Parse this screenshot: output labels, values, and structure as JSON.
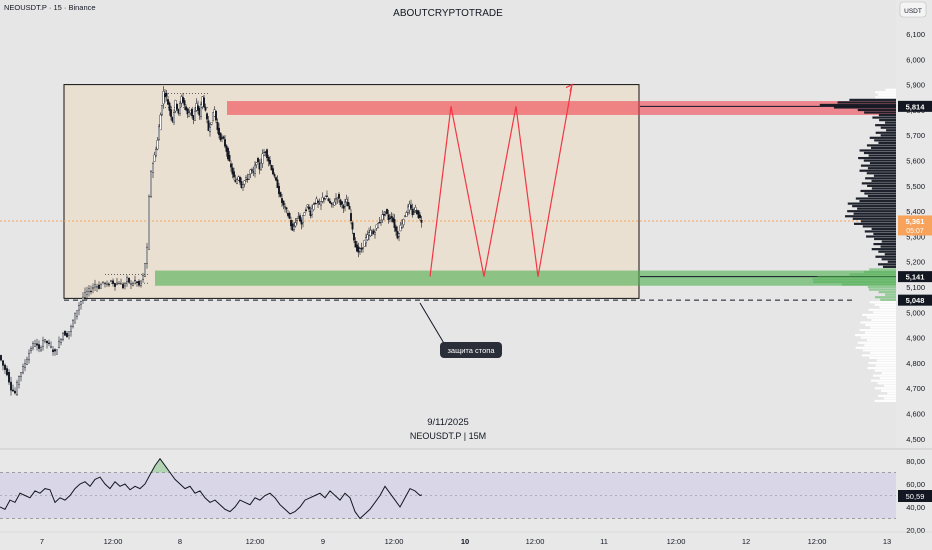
{
  "header": {
    "symbol_info": "NEOUSDT.P · 15 · Binance",
    "watermark": "ABOUTCRYPTOTRADE",
    "currency_button": "USDT"
  },
  "center_label": {
    "date": "9/11/2025",
    "symbol": "NEOUSDT.P  |  15M"
  },
  "annotation": {
    "text": "защита стопа"
  },
  "price_axis": {
    "ticks": [
      "6,100",
      "6,000",
      "5,900",
      "5,800",
      "5,700",
      "5,600",
      "5,500",
      "5,400",
      "5,300",
      "5,200",
      "5,100",
      "5,000",
      "4,900",
      "4,800",
      "4,700",
      "4,600",
      "4,500"
    ],
    "tick_values": [
      6100,
      6000,
      5900,
      5800,
      5700,
      5600,
      5500,
      5400,
      5300,
      5200,
      5100,
      5000,
      4900,
      4800,
      4700,
      4600,
      4500
    ],
    "badges": [
      {
        "id": "resistance",
        "label": "5,814",
        "value": 5814,
        "color": "#131722",
        "text_color": "#ffffff"
      },
      {
        "id": "current",
        "label": "5,361",
        "sub": "05:07",
        "value": 5361,
        "color": "#f7a35c",
        "text_color": "#ffffff"
      },
      {
        "id": "support",
        "label": "5,141",
        "value": 5141,
        "color": "#131722",
        "text_color": "#ffffff"
      },
      {
        "id": "stop",
        "label": "5,048",
        "value": 5048,
        "color": "#131722",
        "text_color": "#ffffff"
      }
    ]
  },
  "rsi_axis": {
    "ticks": [
      "80,00",
      "60,00",
      "40,00",
      "20,00"
    ],
    "tick_values": [
      80,
      60,
      40,
      20
    ],
    "badge": {
      "label": "50,59",
      "value": 50.59
    }
  },
  "time_axis": {
    "labels": [
      "7",
      "12:00",
      "8",
      "12:00",
      "9",
      "12:00",
      "10",
      "12:00",
      "11",
      "12:00",
      "12",
      "12:00",
      "13"
    ],
    "bold": [
      false,
      false,
      false,
      false,
      false,
      false,
      true,
      false,
      false,
      false,
      false,
      false,
      false
    ]
  },
  "zones": {
    "resistance": {
      "top": 5835,
      "bottom": 5780,
      "color": "#f23645"
    },
    "support": {
      "top": 5165,
      "bottom": 5105,
      "color": "#4caf50"
    },
    "range_box": {
      "top": 5900,
      "bottom": 5055,
      "color": "#f7d7b0"
    },
    "stop_line": 5048,
    "current_line": 5361
  },
  "forecast": {
    "color": "#f23645",
    "points": [
      [
        5141,
        0
      ],
      [
        5814,
        1
      ],
      [
        5141,
        2
      ],
      [
        5814,
        3
      ],
      [
        5141,
        4
      ],
      [
        5900,
        5
      ]
    ]
  },
  "chart_data": {
    "type": "candlestick",
    "title": "NEOUSDT.P · 15 · Binance",
    "ylim": [
      4500,
      6150
    ],
    "price_path": [
      [
        0,
        4830
      ],
      [
        4,
        4790
      ],
      [
        8,
        4760
      ],
      [
        12,
        4700
      ],
      [
        16,
        4680
      ],
      [
        20,
        4750
      ],
      [
        24,
        4780
      ],
      [
        28,
        4820
      ],
      [
        32,
        4860
      ],
      [
        36,
        4880
      ],
      [
        40,
        4850
      ],
      [
        44,
        4890
      ],
      [
        48,
        4880
      ],
      [
        52,
        4860
      ],
      [
        56,
        4840
      ],
      [
        60,
        4880
      ],
      [
        64,
        4920
      ],
      [
        68,
        4910
      ],
      [
        72,
        4940
      ],
      [
        76,
        4990
      ],
      [
        80,
        5030
      ],
      [
        84,
        5060
      ],
      [
        88,
        5080
      ],
      [
        92,
        5090
      ],
      [
        96,
        5110
      ],
      [
        100,
        5100
      ],
      [
        104,
        5120
      ],
      [
        108,
        5105
      ],
      [
        112,
        5125
      ],
      [
        116,
        5110
      ],
      [
        120,
        5120
      ],
      [
        124,
        5100
      ],
      [
        128,
        5130
      ],
      [
        132,
        5110
      ],
      [
        136,
        5125
      ],
      [
        140,
        5105
      ],
      [
        144,
        5140
      ],
      [
        148,
        5250
      ],
      [
        150,
        5450
      ],
      [
        152,
        5560
      ],
      [
        155,
        5620
      ],
      [
        158,
        5680
      ],
      [
        161,
        5780
      ],
      [
        164,
        5870
      ],
      [
        167,
        5850
      ],
      [
        170,
        5800
      ],
      [
        173,
        5760
      ],
      [
        176,
        5830
      ],
      [
        179,
        5790
      ],
      [
        182,
        5850
      ],
      [
        185,
        5820
      ],
      [
        188,
        5780
      ],
      [
        191,
        5800
      ],
      [
        194,
        5760
      ],
      [
        197,
        5820
      ],
      [
        200,
        5780
      ],
      [
        203,
        5850
      ],
      [
        206,
        5790
      ],
      [
        209,
        5720
      ],
      [
        212,
        5760
      ],
      [
        215,
        5800
      ],
      [
        218,
        5720
      ],
      [
        221,
        5690
      ],
      [
        224,
        5680
      ],
      [
        227,
        5640
      ],
      [
        230,
        5590
      ],
      [
        233,
        5550
      ],
      [
        236,
        5510
      ],
      [
        239,
        5540
      ],
      [
        242,
        5500
      ],
      [
        245,
        5520
      ],
      [
        248,
        5530
      ],
      [
        251,
        5560
      ],
      [
        254,
        5550
      ],
      [
        257,
        5600
      ],
      [
        260,
        5570
      ],
      [
        263,
        5620
      ],
      [
        266,
        5640
      ],
      [
        269,
        5600
      ],
      [
        272,
        5570
      ],
      [
        275,
        5530
      ],
      [
        278,
        5500
      ],
      [
        281,
        5450
      ],
      [
        284,
        5420
      ],
      [
        287,
        5400
      ],
      [
        290,
        5370
      ],
      [
        293,
        5320
      ],
      [
        296,
        5360
      ],
      [
        299,
        5380
      ],
      [
        302,
        5350
      ],
      [
        305,
        5400
      ],
      [
        308,
        5420
      ],
      [
        311,
        5390
      ],
      [
        314,
        5430
      ],
      [
        317,
        5440
      ],
      [
        320,
        5420
      ],
      [
        323,
        5450
      ],
      [
        326,
        5460
      ],
      [
        329,
        5440
      ],
      [
        332,
        5420
      ],
      [
        335,
        5440
      ],
      [
        338,
        5460
      ],
      [
        341,
        5430
      ],
      [
        344,
        5420
      ],
      [
        347,
        5440
      ],
      [
        350,
        5400
      ],
      [
        353,
        5320
      ],
      [
        356,
        5260
      ],
      [
        359,
        5240
      ],
      [
        362,
        5250
      ],
      [
        365,
        5280
      ],
      [
        368,
        5300
      ],
      [
        371,
        5320
      ],
      [
        374,
        5310
      ],
      [
        377,
        5340
      ],
      [
        380,
        5360
      ],
      [
        383,
        5380
      ],
      [
        386,
        5400
      ],
      [
        389,
        5370
      ],
      [
        392,
        5380
      ],
      [
        395,
        5340
      ],
      [
        398,
        5300
      ],
      [
        401,
        5340
      ],
      [
        404,
        5370
      ],
      [
        407,
        5400
      ],
      [
        410,
        5420
      ],
      [
        413,
        5390
      ],
      [
        416,
        5410
      ],
      [
        419,
        5380
      ],
      [
        422,
        5361
      ]
    ],
    "rsi_path": [
      [
        0,
        40
      ],
      [
        5,
        38
      ],
      [
        10,
        46
      ],
      [
        15,
        44
      ],
      [
        20,
        52
      ],
      [
        25,
        50
      ],
      [
        30,
        48
      ],
      [
        35,
        54
      ],
      [
        40,
        52
      ],
      [
        45,
        56
      ],
      [
        50,
        55
      ],
      [
        55,
        44
      ],
      [
        60,
        48
      ],
      [
        65,
        46
      ],
      [
        70,
        50
      ],
      [
        75,
        56
      ],
      [
        80,
        60
      ],
      [
        85,
        62
      ],
      [
        90,
        58
      ],
      [
        95,
        64
      ],
      [
        100,
        66
      ],
      [
        105,
        60
      ],
      [
        110,
        56
      ],
      [
        115,
        62
      ],
      [
        120,
        58
      ],
      [
        125,
        60
      ],
      [
        130,
        55
      ],
      [
        135,
        58
      ],
      [
        140,
        56
      ],
      [
        145,
        60
      ],
      [
        150,
        68
      ],
      [
        155,
        76
      ],
      [
        160,
        82
      ],
      [
        165,
        76
      ],
      [
        170,
        70
      ],
      [
        175,
        64
      ],
      [
        180,
        60
      ],
      [
        185,
        56
      ],
      [
        190,
        58
      ],
      [
        195,
        52
      ],
      [
        200,
        54
      ],
      [
        205,
        48
      ],
      [
        210,
        44
      ],
      [
        215,
        46
      ],
      [
        220,
        42
      ],
      [
        225,
        38
      ],
      [
        230,
        36
      ],
      [
        235,
        40
      ],
      [
        240,
        46
      ],
      [
        245,
        44
      ],
      [
        250,
        42
      ],
      [
        255,
        48
      ],
      [
        260,
        46
      ],
      [
        265,
        50
      ],
      [
        270,
        52
      ],
      [
        275,
        48
      ],
      [
        280,
        42
      ],
      [
        285,
        38
      ],
      [
        290,
        34
      ],
      [
        295,
        36
      ],
      [
        300,
        40
      ],
      [
        305,
        46
      ],
      [
        310,
        48
      ],
      [
        315,
        50
      ],
      [
        320,
        52
      ],
      [
        325,
        48
      ],
      [
        330,
        54
      ],
      [
        335,
        50
      ],
      [
        340,
        46
      ],
      [
        345,
        52
      ],
      [
        350,
        48
      ],
      [
        355,
        36
      ],
      [
        360,
        30
      ],
      [
        365,
        34
      ],
      [
        370,
        38
      ],
      [
        375,
        44
      ],
      [
        380,
        50
      ],
      [
        385,
        58
      ],
      [
        390,
        52
      ],
      [
        395,
        46
      ],
      [
        400,
        40
      ],
      [
        405,
        48
      ],
      [
        410,
        56
      ],
      [
        415,
        54
      ],
      [
        420,
        50
      ],
      [
        422,
        50.59
      ]
    ]
  }
}
